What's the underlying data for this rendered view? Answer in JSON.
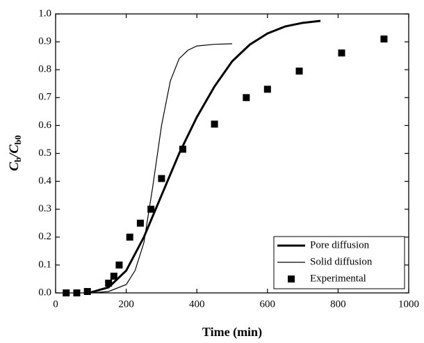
{
  "chart_data": {
    "type": "line",
    "xlabel": "Time (min)",
    "ylabel": [
      "C",
      "b",
      "/C",
      "b0"
    ],
    "xlim": [
      0,
      1000
    ],
    "ylim": [
      0,
      1
    ],
    "xticks": [
      0,
      200,
      400,
      600,
      800,
      1000
    ],
    "yticks": [
      {
        "value": 0,
        "label": "0.0"
      },
      {
        "value": 0.1,
        "label": "0.1"
      },
      {
        "value": 0.2,
        "label": "0.2"
      },
      {
        "value": 0.3,
        "label": "0.3"
      },
      {
        "value": 0.4,
        "label": "0.4"
      },
      {
        "value": 0.5,
        "label": "0.5"
      },
      {
        "value": 0.6,
        "label": "0.6"
      },
      {
        "value": 0.7,
        "label": "0.7"
      },
      {
        "value": 0.8,
        "label": "0.8"
      },
      {
        "value": 0.9,
        "label": "0.9"
      },
      {
        "value": 1,
        "label": "1.0"
      }
    ],
    "legend": "lower right",
    "series": [
      {
        "name": "Pore diffusion",
        "color": "#000000",
        "mode": "line",
        "width": 3,
        "x": [
          80,
          100,
          150,
          200,
          250,
          300,
          350,
          400,
          450,
          500,
          550,
          600,
          650,
          700,
          750
        ],
        "values": [
          0,
          0.002,
          0.02,
          0.08,
          0.2,
          0.35,
          0.5,
          0.63,
          0.74,
          0.83,
          0.89,
          0.93,
          0.955,
          0.968,
          0.975
        ]
      },
      {
        "name": "Solid diffusion",
        "color": "#000000",
        "mode": "line",
        "width": 1.2,
        "x": [
          100,
          150,
          200,
          225,
          250,
          275,
          300,
          325,
          350,
          375,
          400,
          450,
          500
        ],
        "values": [
          0,
          0.005,
          0.03,
          0.08,
          0.18,
          0.38,
          0.6,
          0.76,
          0.84,
          0.87,
          0.885,
          0.891,
          0.893
        ]
      },
      {
        "name": "Experimental",
        "color": "#000000",
        "mode": "markers",
        "x": [
          30,
          60,
          90,
          150,
          165,
          180,
          210,
          240,
          270,
          300,
          360,
          450,
          540,
          600,
          690,
          810,
          930
        ],
        "values": [
          0,
          0,
          0.005,
          0.035,
          0.06,
          0.1,
          0.2,
          0.25,
          0.3,
          0.41,
          0.515,
          0.605,
          0.7,
          0.73,
          0.795,
          0.86,
          0.91
        ]
      }
    ]
  }
}
